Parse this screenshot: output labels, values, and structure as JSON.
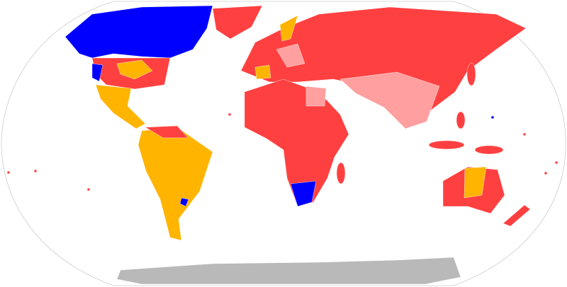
{
  "map": {
    "projection": "robinson-world",
    "colors": {
      "red": "#ff4040",
      "blue": "#0000ff",
      "orange": "#ffb400",
      "pink": "#ff9fa0",
      "gray": "#b9b9b9",
      "ocean": "#ffffff",
      "border": "#cccccc"
    }
  }
}
